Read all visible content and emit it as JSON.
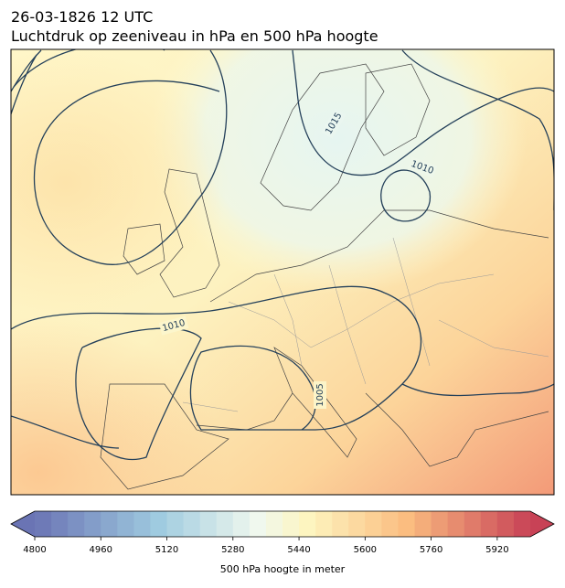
{
  "title": {
    "line1": "26-03-1826 12 UTC",
    "line2": "Luchtdruk op zeeniveau in hPa en 500 hPa hoogte"
  },
  "map": {
    "contour_labels": [
      "1015",
      "1010",
      "1010",
      "1005"
    ]
  },
  "colorbar": {
    "label": "500 hPa hoogte in meter",
    "lim": [
      4800,
      6000
    ],
    "step": 40,
    "ticks": [
      4800,
      4960,
      5120,
      5280,
      5440,
      5600,
      5760,
      5920
    ],
    "extend": "both"
  }
}
